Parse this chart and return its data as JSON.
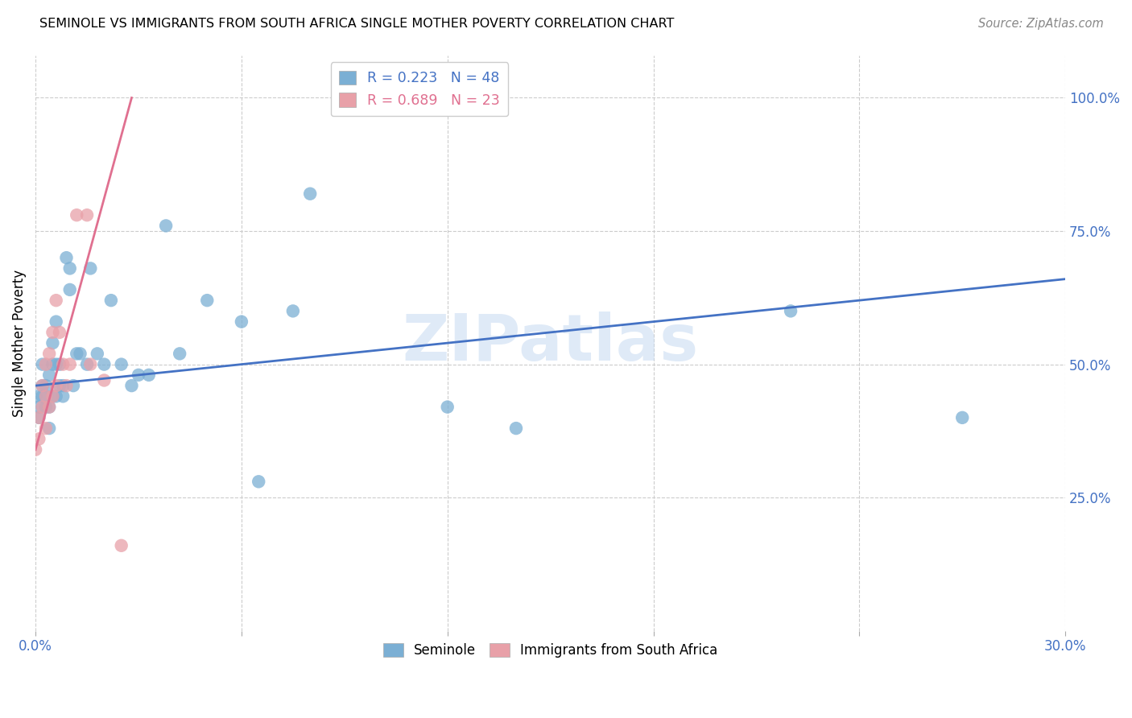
{
  "title": "SEMINOLE VS IMMIGRANTS FROM SOUTH AFRICA SINGLE MOTHER POVERTY CORRELATION CHART",
  "source": "Source: ZipAtlas.com",
  "ylabel": "Single Mother Poverty",
  "xlim": [
    0.0,
    0.3
  ],
  "ylim": [
    0.0,
    1.08
  ],
  "ytick_values": [
    0.25,
    0.5,
    0.75,
    1.0
  ],
  "seminole_R": 0.223,
  "seminole_N": 48,
  "immigrants_R": 0.689,
  "immigrants_N": 23,
  "seminole_color": "#7BAFD4",
  "immigrants_color": "#E8A0A8",
  "line_blue": "#4472c4",
  "line_pink": "#E07090",
  "watermark": "ZIPatlas",
  "watermark_color": "#c5d9f1",
  "seminole_x": [
    0.0,
    0.001,
    0.001,
    0.002,
    0.002,
    0.002,
    0.003,
    0.003,
    0.003,
    0.004,
    0.004,
    0.004,
    0.005,
    0.005,
    0.005,
    0.006,
    0.006,
    0.006,
    0.007,
    0.007,
    0.008,
    0.008,
    0.009,
    0.01,
    0.01,
    0.011,
    0.012,
    0.013,
    0.015,
    0.016,
    0.018,
    0.02,
    0.022,
    0.025,
    0.028,
    0.03,
    0.033,
    0.038,
    0.042,
    0.05,
    0.06,
    0.065,
    0.075,
    0.08,
    0.12,
    0.14,
    0.22,
    0.27
  ],
  "seminole_y": [
    0.44,
    0.4,
    0.42,
    0.44,
    0.46,
    0.5,
    0.42,
    0.44,
    0.46,
    0.38,
    0.42,
    0.48,
    0.44,
    0.5,
    0.54,
    0.44,
    0.5,
    0.58,
    0.46,
    0.5,
    0.44,
    0.46,
    0.7,
    0.64,
    0.68,
    0.46,
    0.52,
    0.52,
    0.5,
    0.68,
    0.52,
    0.5,
    0.62,
    0.5,
    0.46,
    0.48,
    0.48,
    0.76,
    0.52,
    0.62,
    0.58,
    0.28,
    0.6,
    0.82,
    0.42,
    0.38,
    0.6,
    0.4
  ],
  "immigrants_x": [
    0.0,
    0.001,
    0.001,
    0.002,
    0.002,
    0.003,
    0.003,
    0.003,
    0.004,
    0.004,
    0.005,
    0.005,
    0.006,
    0.006,
    0.007,
    0.008,
    0.009,
    0.01,
    0.012,
    0.015,
    0.016,
    0.02,
    0.025
  ],
  "immigrants_y": [
    0.34,
    0.36,
    0.4,
    0.42,
    0.46,
    0.38,
    0.44,
    0.5,
    0.42,
    0.52,
    0.44,
    0.56,
    0.46,
    0.62,
    0.56,
    0.5,
    0.46,
    0.5,
    0.78,
    0.78,
    0.5,
    0.47,
    0.16
  ],
  "blue_line_x0": 0.0,
  "blue_line_y0": 0.46,
  "blue_line_x1": 0.3,
  "blue_line_y1": 0.66,
  "red_line_x0": 0.0,
  "red_line_y0": 0.34,
  "red_line_x1": 0.028,
  "red_line_y1": 1.0
}
